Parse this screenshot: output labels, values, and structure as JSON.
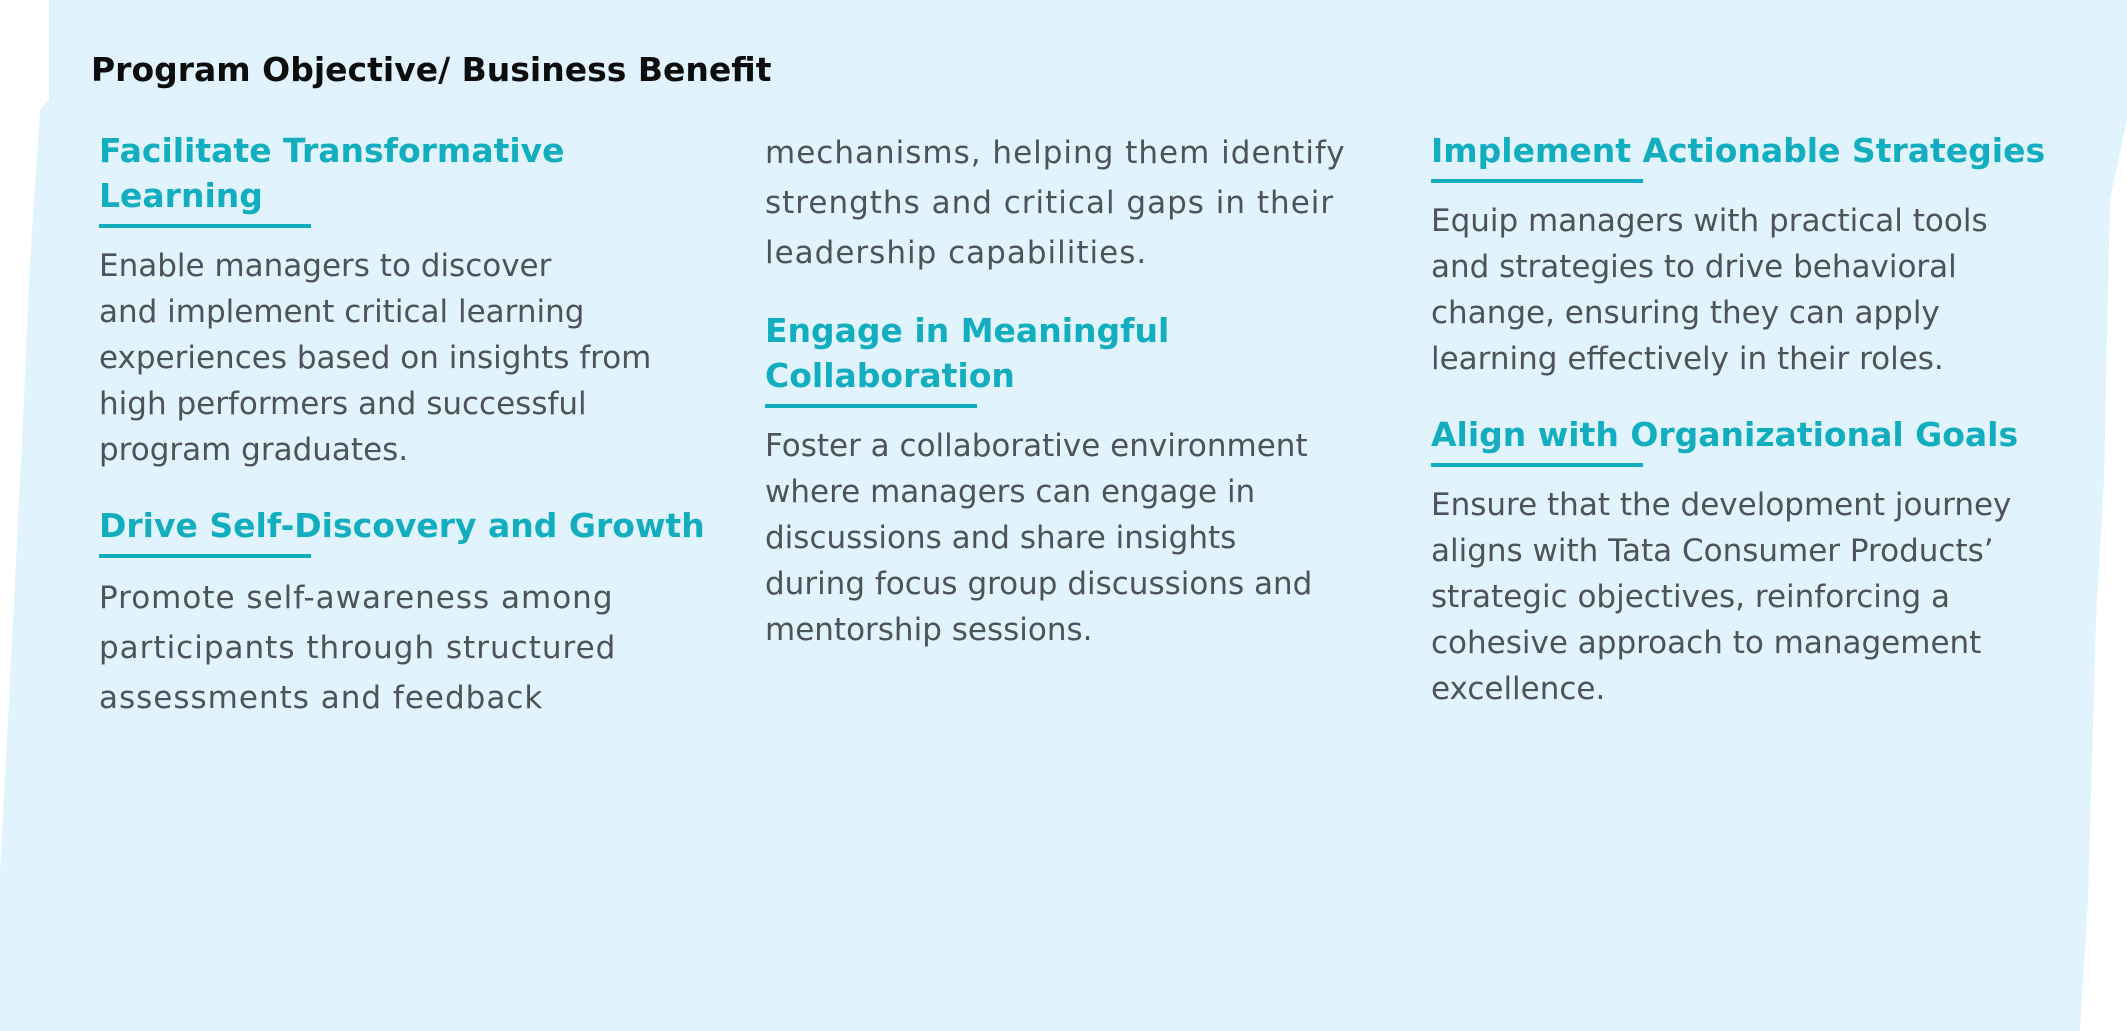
{
  "page_title": "Program Objective/ Business Benefit",
  "colors": {
    "background": "#e1f3fd",
    "accent": "#12aebf",
    "heading_text": "#0d0d0d",
    "body_text": "#4e5358"
  },
  "column1": {
    "section1": {
      "heading_line1": "Facilitate Transformative",
      "heading_line2": "Learning",
      "body": [
        "Enable managers to discover",
        "and implement critical learning",
        "experiences based on insights from",
        "high performers and successful",
        "program graduates."
      ]
    },
    "section2": {
      "heading": "Drive Self-Discovery and Growth",
      "body": [
        "Promote self-awareness among",
        "participants through structured",
        "assessments and feedback"
      ]
    }
  },
  "column2": {
    "continuation": [
      "mechanisms, helping them identify",
      "strengths and critical gaps in their",
      "leadership capabilities."
    ],
    "section1": {
      "heading": "Engage in Meaningful Collaboration",
      "body": [
        "Foster a collaborative environment",
        "where managers can engage in",
        "discussions and share insights",
        "during focus group discussions and",
        "mentorship sessions."
      ]
    }
  },
  "column3": {
    "section1": {
      "heading": "Implement Actionable Strategies",
      "body": [
        "Equip managers with practical tools",
        "and strategies to drive behavioral",
        "change, ensuring they can apply",
        "learning effectively in their roles."
      ]
    },
    "section2": {
      "heading": "Align with Organizational Goals",
      "body": [
        "Ensure that the development journey",
        "aligns with Tata Consumer Products’",
        "strategic objectives, reinforcing a",
        "cohesive approach to management",
        "excellence."
      ]
    }
  }
}
